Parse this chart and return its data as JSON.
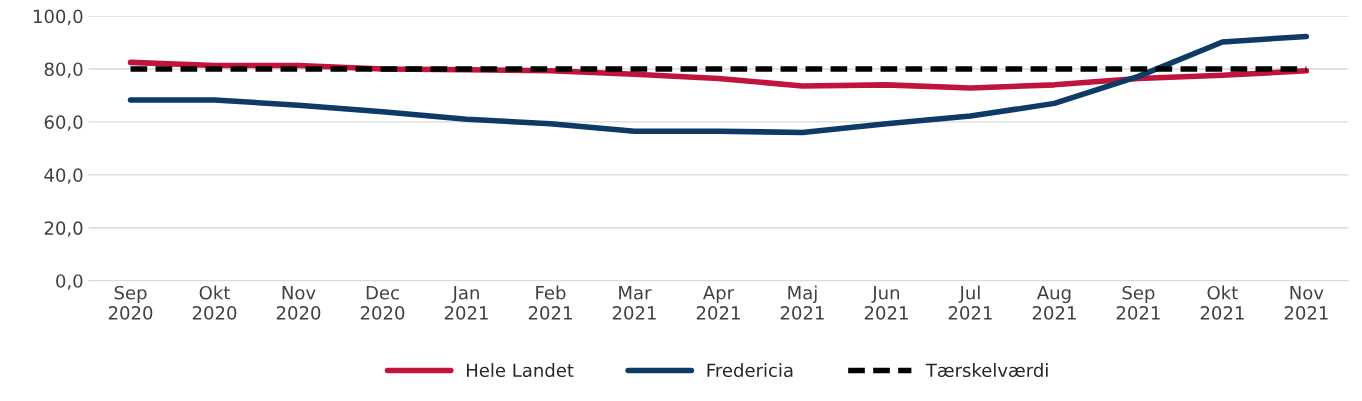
{
  "chart_data": {
    "type": "line",
    "categories": [
      "Sep\n2020",
      "Okt\n2020",
      "Nov\n2020",
      "Dec\n2020",
      "Jan\n2021",
      "Feb\n2021",
      "Mar\n2021",
      "Apr\n2021",
      "Maj\n2021",
      "Jun\n2021",
      "Jul\n2021",
      "Aug\n2021",
      "Sep\n2021",
      "Okt\n2021",
      "Nov\n2021"
    ],
    "series": [
      {
        "name": "Hele Landet",
        "color": "#c0143c",
        "line_style": "solid",
        "values": [
          82.5,
          81.3,
          81.3,
          80.0,
          79.7,
          79.3,
          78.0,
          76.4,
          73.6,
          74.0,
          72.8,
          74.0,
          76.4,
          77.6,
          79.3
        ]
      },
      {
        "name": "Fredericia",
        "color": "#0e3a66",
        "line_style": "solid",
        "values": [
          68.3,
          68.3,
          66.3,
          63.8,
          61.0,
          59.3,
          56.5,
          56.5,
          56.0,
          59.3,
          62.2,
          67.0,
          77.2,
          90.2,
          92.3
        ]
      },
      {
        "name": "Tærskelværdi",
        "color": "#000000",
        "line_style": "dashed",
        "values": [
          80,
          80,
          80,
          80,
          80,
          80,
          80,
          80,
          80,
          80,
          80,
          80,
          80,
          80,
          80
        ]
      }
    ],
    "ylim": [
      0,
      100
    ],
    "yticks": [
      {
        "value": 0,
        "label": "0,0"
      },
      {
        "value": 20,
        "label": "20,0"
      },
      {
        "value": 40,
        "label": "40,0"
      },
      {
        "value": 60,
        "label": "60,0"
      },
      {
        "value": 80,
        "label": "80,0"
      },
      {
        "value": 100,
        "label": "100,0"
      }
    ],
    "grid": "y",
    "legend": "bottom",
    "marker": "none"
  }
}
